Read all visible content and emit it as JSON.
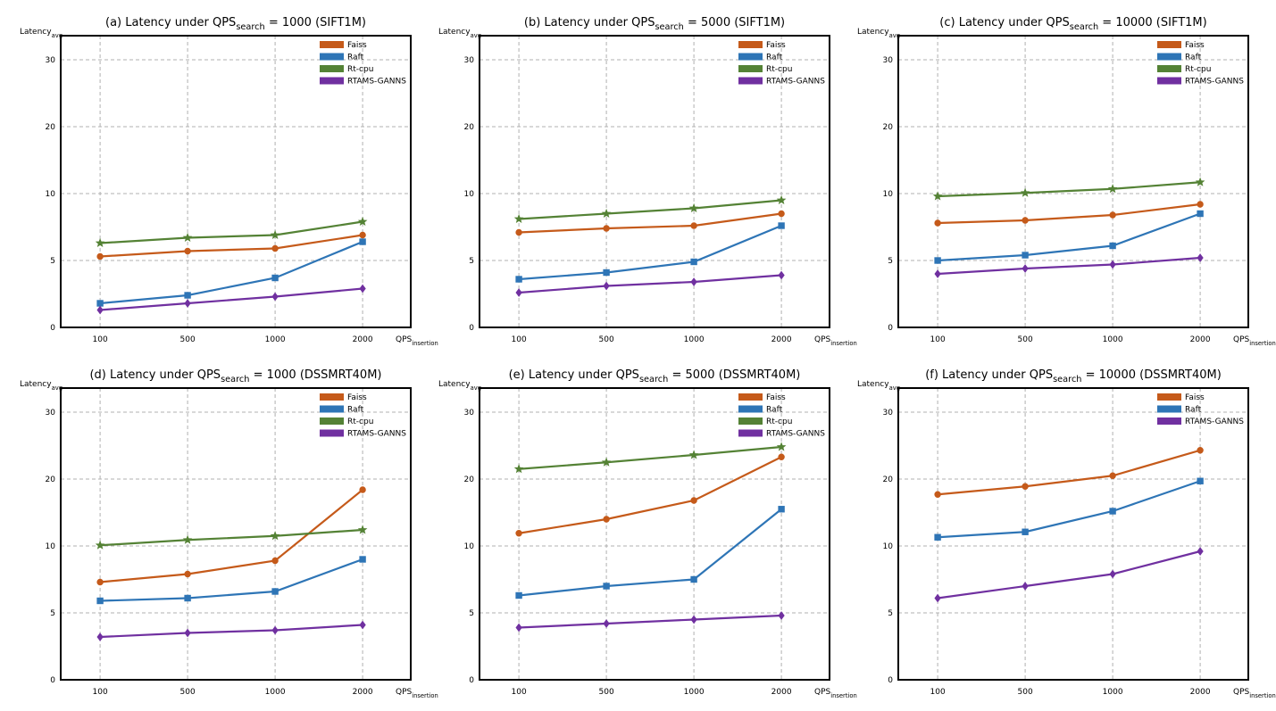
{
  "chart_data": [
    {
      "type": "line",
      "title": {
        "main": "(a) Latency under QPS",
        "sub": "search",
        "rest": " = 1000 (SIFT1M)"
      },
      "ylabel": {
        "main": "Latency",
        "sub": "avg"
      },
      "xlabel": {
        "main": "QPS",
        "sub": "insertion"
      },
      "categories": [
        "100",
        "500",
        "1000",
        "2000"
      ],
      "ylim": [
        0,
        33.6
      ],
      "yticks": [
        0,
        5,
        10,
        20,
        30
      ],
      "grid": true,
      "legend": "upper right",
      "series": [
        {
          "name": "Faiss",
          "color": "#c55a1a",
          "marker": "circle",
          "values": [
            5.3,
            5.7,
            5.9,
            6.9
          ]
        },
        {
          "name": "Raft",
          "color": "#2e75b6",
          "marker": "square",
          "values": [
            1.8,
            2.4,
            3.7,
            6.4
          ]
        },
        {
          "name": "Rt-cpu",
          "color": "#548235",
          "marker": "star",
          "values": [
            6.3,
            6.7,
            6.9,
            7.9
          ]
        },
        {
          "name": "RTAMS-GANNS",
          "color": "#7030a0",
          "marker": "diamond",
          "values": [
            1.3,
            1.8,
            2.3,
            2.9
          ]
        }
      ]
    },
    {
      "type": "line",
      "title": {
        "main": "(b) Latency under QPS",
        "sub": "search",
        "rest": " = 5000 (SIFT1M)"
      },
      "ylabel": {
        "main": "Latency",
        "sub": "avg"
      },
      "xlabel": {
        "main": "QPS",
        "sub": "insertion"
      },
      "categories": [
        "100",
        "500",
        "1000",
        "2000"
      ],
      "ylim": [
        0,
        33.6
      ],
      "yticks": [
        0,
        5,
        10,
        20,
        30
      ],
      "grid": true,
      "legend": "upper right",
      "series": [
        {
          "name": "Faiss",
          "color": "#c55a1a",
          "marker": "circle",
          "values": [
            7.1,
            7.4,
            7.6,
            8.5
          ]
        },
        {
          "name": "Raft",
          "color": "#2e75b6",
          "marker": "square",
          "values": [
            3.6,
            4.1,
            4.9,
            7.6
          ]
        },
        {
          "name": "Rt-cpu",
          "color": "#548235",
          "marker": "star",
          "values": [
            8.1,
            8.5,
            8.9,
            9.5
          ]
        },
        {
          "name": "RTAMS-GANNS",
          "color": "#7030a0",
          "marker": "diamond",
          "values": [
            2.6,
            3.1,
            3.4,
            3.9
          ]
        }
      ]
    },
    {
      "type": "line",
      "title": {
        "main": "(c) Latency under QPS",
        "sub": "search",
        "rest": " = 10000 (SIFT1M)"
      },
      "ylabel": {
        "main": "Latency",
        "sub": "avg"
      },
      "xlabel": {
        "main": "QPS",
        "sub": "insertion"
      },
      "categories": [
        "100",
        "500",
        "1000",
        "2000"
      ],
      "ylim": [
        0,
        33.6
      ],
      "yticks": [
        0,
        5,
        10,
        20,
        30
      ],
      "grid": true,
      "legend": "upper right",
      "series": [
        {
          "name": "Faiss",
          "color": "#c55a1a",
          "marker": "circle",
          "values": [
            7.8,
            8.0,
            8.4,
            9.2
          ]
        },
        {
          "name": "Raft",
          "color": "#2e75b6",
          "marker": "square",
          "values": [
            5.0,
            5.4,
            6.1,
            8.5
          ]
        },
        {
          "name": "Rt-cpu",
          "color": "#548235",
          "marker": "star",
          "values": [
            9.8,
            10.1,
            10.7,
            11.7
          ]
        },
        {
          "name": "RTAMS-GANNS",
          "color": "#7030a0",
          "marker": "diamond",
          "values": [
            4.0,
            4.4,
            4.7,
            5.2
          ]
        }
      ]
    },
    {
      "type": "line",
      "title": {
        "main": "(d) Latency under QPS",
        "sub": "search",
        "rest": " = 1000 (DSSMRT40M)"
      },
      "ylabel": {
        "main": "Latency",
        "sub": "avg"
      },
      "xlabel": {
        "main": "QPS",
        "sub": "insertion"
      },
      "categories": [
        "100",
        "500",
        "1000",
        "2000"
      ],
      "ylim": [
        0,
        33.6
      ],
      "yticks": [
        0,
        5,
        10,
        20,
        30
      ],
      "grid": true,
      "legend": "upper right",
      "series": [
        {
          "name": "Faiss",
          "color": "#c55a1a",
          "marker": "circle",
          "values": [
            7.3,
            7.9,
            8.9,
            18.4
          ]
        },
        {
          "name": "Raft",
          "color": "#2e75b6",
          "marker": "square",
          "values": [
            5.9,
            6.1,
            6.6,
            9.0
          ]
        },
        {
          "name": "Rt-cpu",
          "color": "#548235",
          "marker": "star",
          "values": [
            10.1,
            10.9,
            11.5,
            12.4
          ]
        },
        {
          "name": "RTAMS-GANNS",
          "color": "#7030a0",
          "marker": "diamond",
          "values": [
            3.2,
            3.5,
            3.7,
            4.1
          ]
        }
      ]
    },
    {
      "type": "line",
      "title": {
        "main": "(e) Latency under QPS",
        "sub": "search",
        "rest": " = 5000 (DSSMRT40M)"
      },
      "ylabel": {
        "main": "Latency",
        "sub": "avg"
      },
      "xlabel": {
        "main": "QPS",
        "sub": "insertion"
      },
      "categories": [
        "100",
        "500",
        "1000",
        "2000"
      ],
      "ylim": [
        0,
        33.6
      ],
      "yticks": [
        0,
        5,
        10,
        20,
        30
      ],
      "grid": true,
      "legend": "upper right",
      "series": [
        {
          "name": "Faiss",
          "color": "#c55a1a",
          "marker": "circle",
          "values": [
            11.9,
            14.0,
            16.8,
            23.3
          ]
        },
        {
          "name": "Raft",
          "color": "#2e75b6",
          "marker": "square",
          "values": [
            6.3,
            7.0,
            7.5,
            15.5
          ]
        },
        {
          "name": "Rt-cpu",
          "color": "#548235",
          "marker": "star",
          "values": [
            21.5,
            22.5,
            23.6,
            24.8
          ]
        },
        {
          "name": "RTAMS-GANNS",
          "color": "#7030a0",
          "marker": "diamond",
          "values": [
            3.9,
            4.2,
            4.5,
            4.8
          ]
        }
      ]
    },
    {
      "type": "line",
      "title": {
        "main": "(f) Latency under QPS",
        "sub": "search",
        "rest": " = 10000 (DSSMRT40M)"
      },
      "ylabel": {
        "main": "Latency",
        "sub": "avg"
      },
      "xlabel": {
        "main": "QPS",
        "sub": "insertion"
      },
      "categories": [
        "100",
        "500",
        "1000",
        "2000"
      ],
      "ylim": [
        0,
        33.6
      ],
      "yticks": [
        0,
        5,
        10,
        20,
        30
      ],
      "grid": true,
      "legend": "upper right",
      "series": [
        {
          "name": "Faiss",
          "color": "#c55a1a",
          "marker": "circle",
          "values": [
            17.7,
            18.9,
            20.5,
            24.3
          ]
        },
        {
          "name": "Raft",
          "color": "#2e75b6",
          "marker": "square",
          "values": [
            11.3,
            12.1,
            15.2,
            19.7
          ]
        },
        {
          "name": "RTAMS-GANNS",
          "color": "#7030a0",
          "marker": "diamond",
          "values": [
            6.1,
            7.0,
            7.9,
            9.6
          ]
        }
      ]
    }
  ]
}
